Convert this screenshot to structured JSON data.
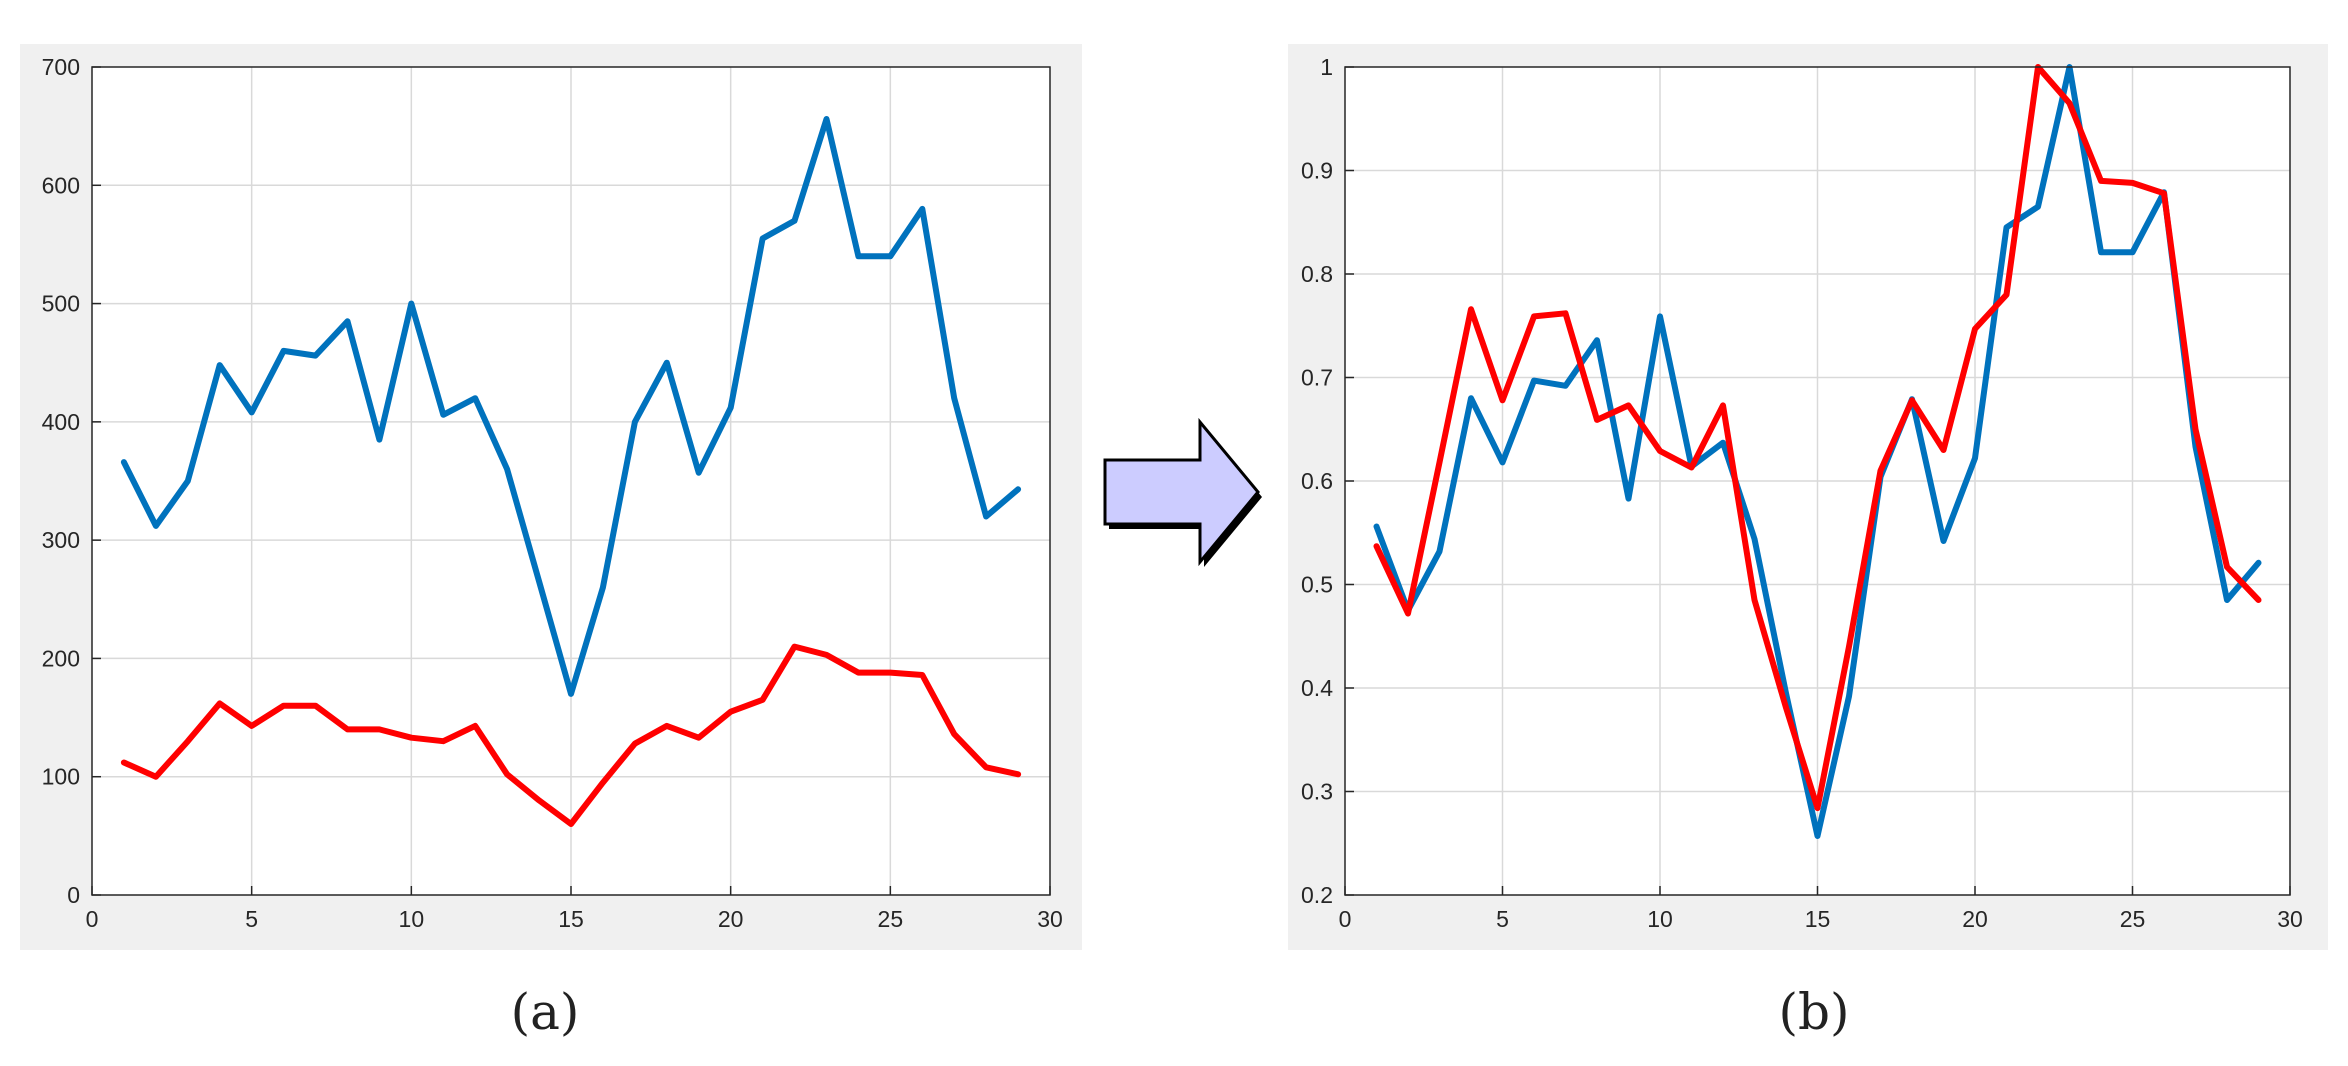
{
  "captions": {
    "a": "(a)",
    "b": "(b)"
  },
  "arrow": {
    "fill": "#ccccff",
    "stroke": "#000000",
    "icon": "right-arrow-icon"
  },
  "colors": {
    "blue": "#0072bd",
    "red": "#ff0000",
    "grid": "#d9d9d9",
    "axis": "#262626"
  },
  "chart_data": [
    {
      "type": "line",
      "title": "",
      "xlabel": "",
      "ylabel": "",
      "xlim": [
        0,
        30
      ],
      "ylim": [
        0,
        700
      ],
      "xticks": [
        0,
        5,
        10,
        15,
        20,
        25,
        30
      ],
      "yticks": [
        0,
        100,
        200,
        300,
        400,
        500,
        600,
        700
      ],
      "grid": true,
      "x": [
        1,
        2,
        3,
        4,
        5,
        6,
        7,
        8,
        9,
        10,
        11,
        12,
        13,
        14,
        15,
        16,
        17,
        18,
        19,
        20,
        21,
        22,
        23,
        24,
        25,
        26,
        27,
        28,
        29
      ],
      "series": [
        {
          "color": "#0072bd",
          "values": [
            366,
            312,
            350,
            448,
            408,
            460,
            456,
            485,
            385,
            500,
            406,
            420,
            360,
            265,
            170,
            260,
            400,
            450,
            357,
            412,
            555,
            570,
            656,
            540,
            540,
            580,
            420,
            320,
            343
          ]
        },
        {
          "color": "#ff0000",
          "values": [
            112,
            100,
            130,
            162,
            143,
            160,
            160,
            140,
            140,
            133,
            130,
            143,
            102,
            80,
            60,
            95,
            128,
            143,
            133,
            155,
            165,
            210,
            203,
            188,
            188,
            186,
            136,
            108,
            102
          ]
        }
      ]
    },
    {
      "type": "line",
      "title": "",
      "xlabel": "",
      "ylabel": "",
      "xlim": [
        0,
        30
      ],
      "ylim": [
        0.2,
        1
      ],
      "xticks": [
        0,
        5,
        10,
        15,
        20,
        25,
        30
      ],
      "yticks": [
        0.2,
        0.3,
        0.4,
        0.5,
        0.6,
        0.7,
        0.8,
        0.9,
        1
      ],
      "grid": true,
      "x": [
        1,
        2,
        3,
        4,
        5,
        6,
        7,
        8,
        9,
        10,
        11,
        12,
        13,
        14,
        15,
        16,
        17,
        18,
        19,
        20,
        21,
        22,
        23,
        24,
        25,
        26,
        27,
        28,
        29
      ],
      "series": [
        {
          "color": "#0072bd",
          "values": [
            0.556,
            0.475,
            0.532,
            0.68,
            0.618,
            0.697,
            0.692,
            0.736,
            0.583,
            0.759,
            0.614,
            0.637,
            0.544,
            0.395,
            0.257,
            0.392,
            0.604,
            0.679,
            0.542,
            0.622,
            0.845,
            0.865,
            1.0,
            0.821,
            0.821,
            0.879,
            0.633,
            0.485,
            0.521
          ]
        },
        {
          "color": "#ff0000",
          "values": [
            0.537,
            0.472,
            0.618,
            0.766,
            0.678,
            0.759,
            0.762,
            0.659,
            0.673,
            0.629,
            0.613,
            0.673,
            0.485,
            0.381,
            0.284,
            0.44,
            0.61,
            0.678,
            0.63,
            0.747,
            0.78,
            1.0,
            0.965,
            0.89,
            0.888,
            0.878,
            0.65,
            0.517,
            0.485
          ]
        }
      ]
    }
  ]
}
